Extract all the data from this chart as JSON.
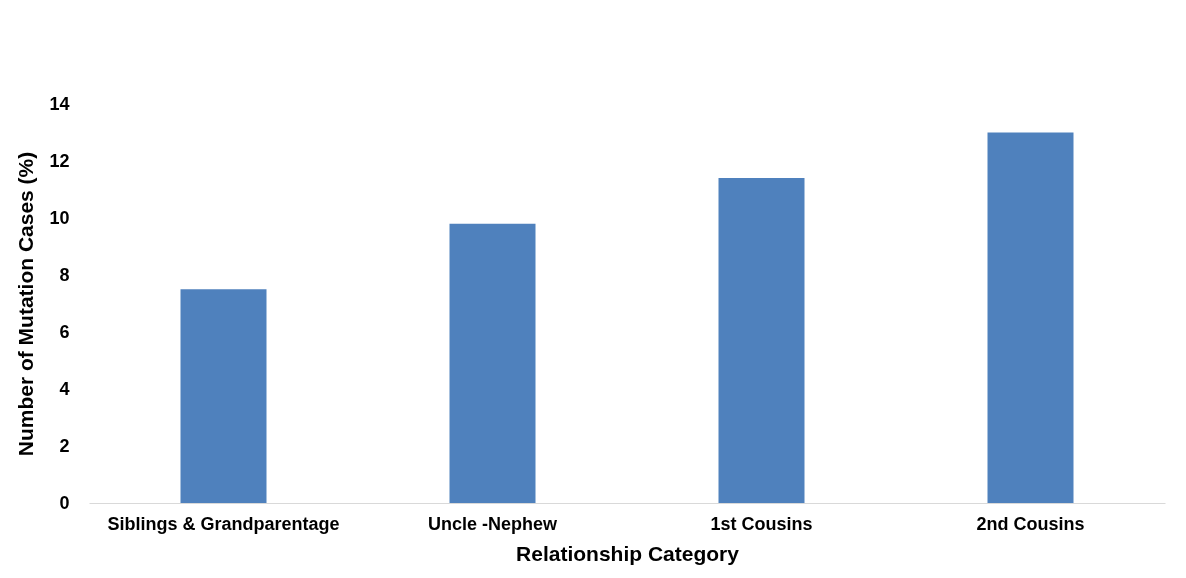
{
  "chart_data": {
    "type": "bar",
    "xlabel": "Relationship Category",
    "ylabel": "Number of Mutation Cases (%)",
    "categories": [
      "Siblings & Grandparentage",
      "Uncle -Nephew",
      "1st Cousins",
      "2nd Cousins"
    ],
    "values": [
      7.5,
      9.8,
      11.4,
      13.0
    ],
    "color": "#4f81bd",
    "ylim": [
      0,
      14
    ],
    "yticks": [
      0,
      2,
      4,
      6,
      8,
      10,
      12,
      14
    ],
    "grid": false
  }
}
